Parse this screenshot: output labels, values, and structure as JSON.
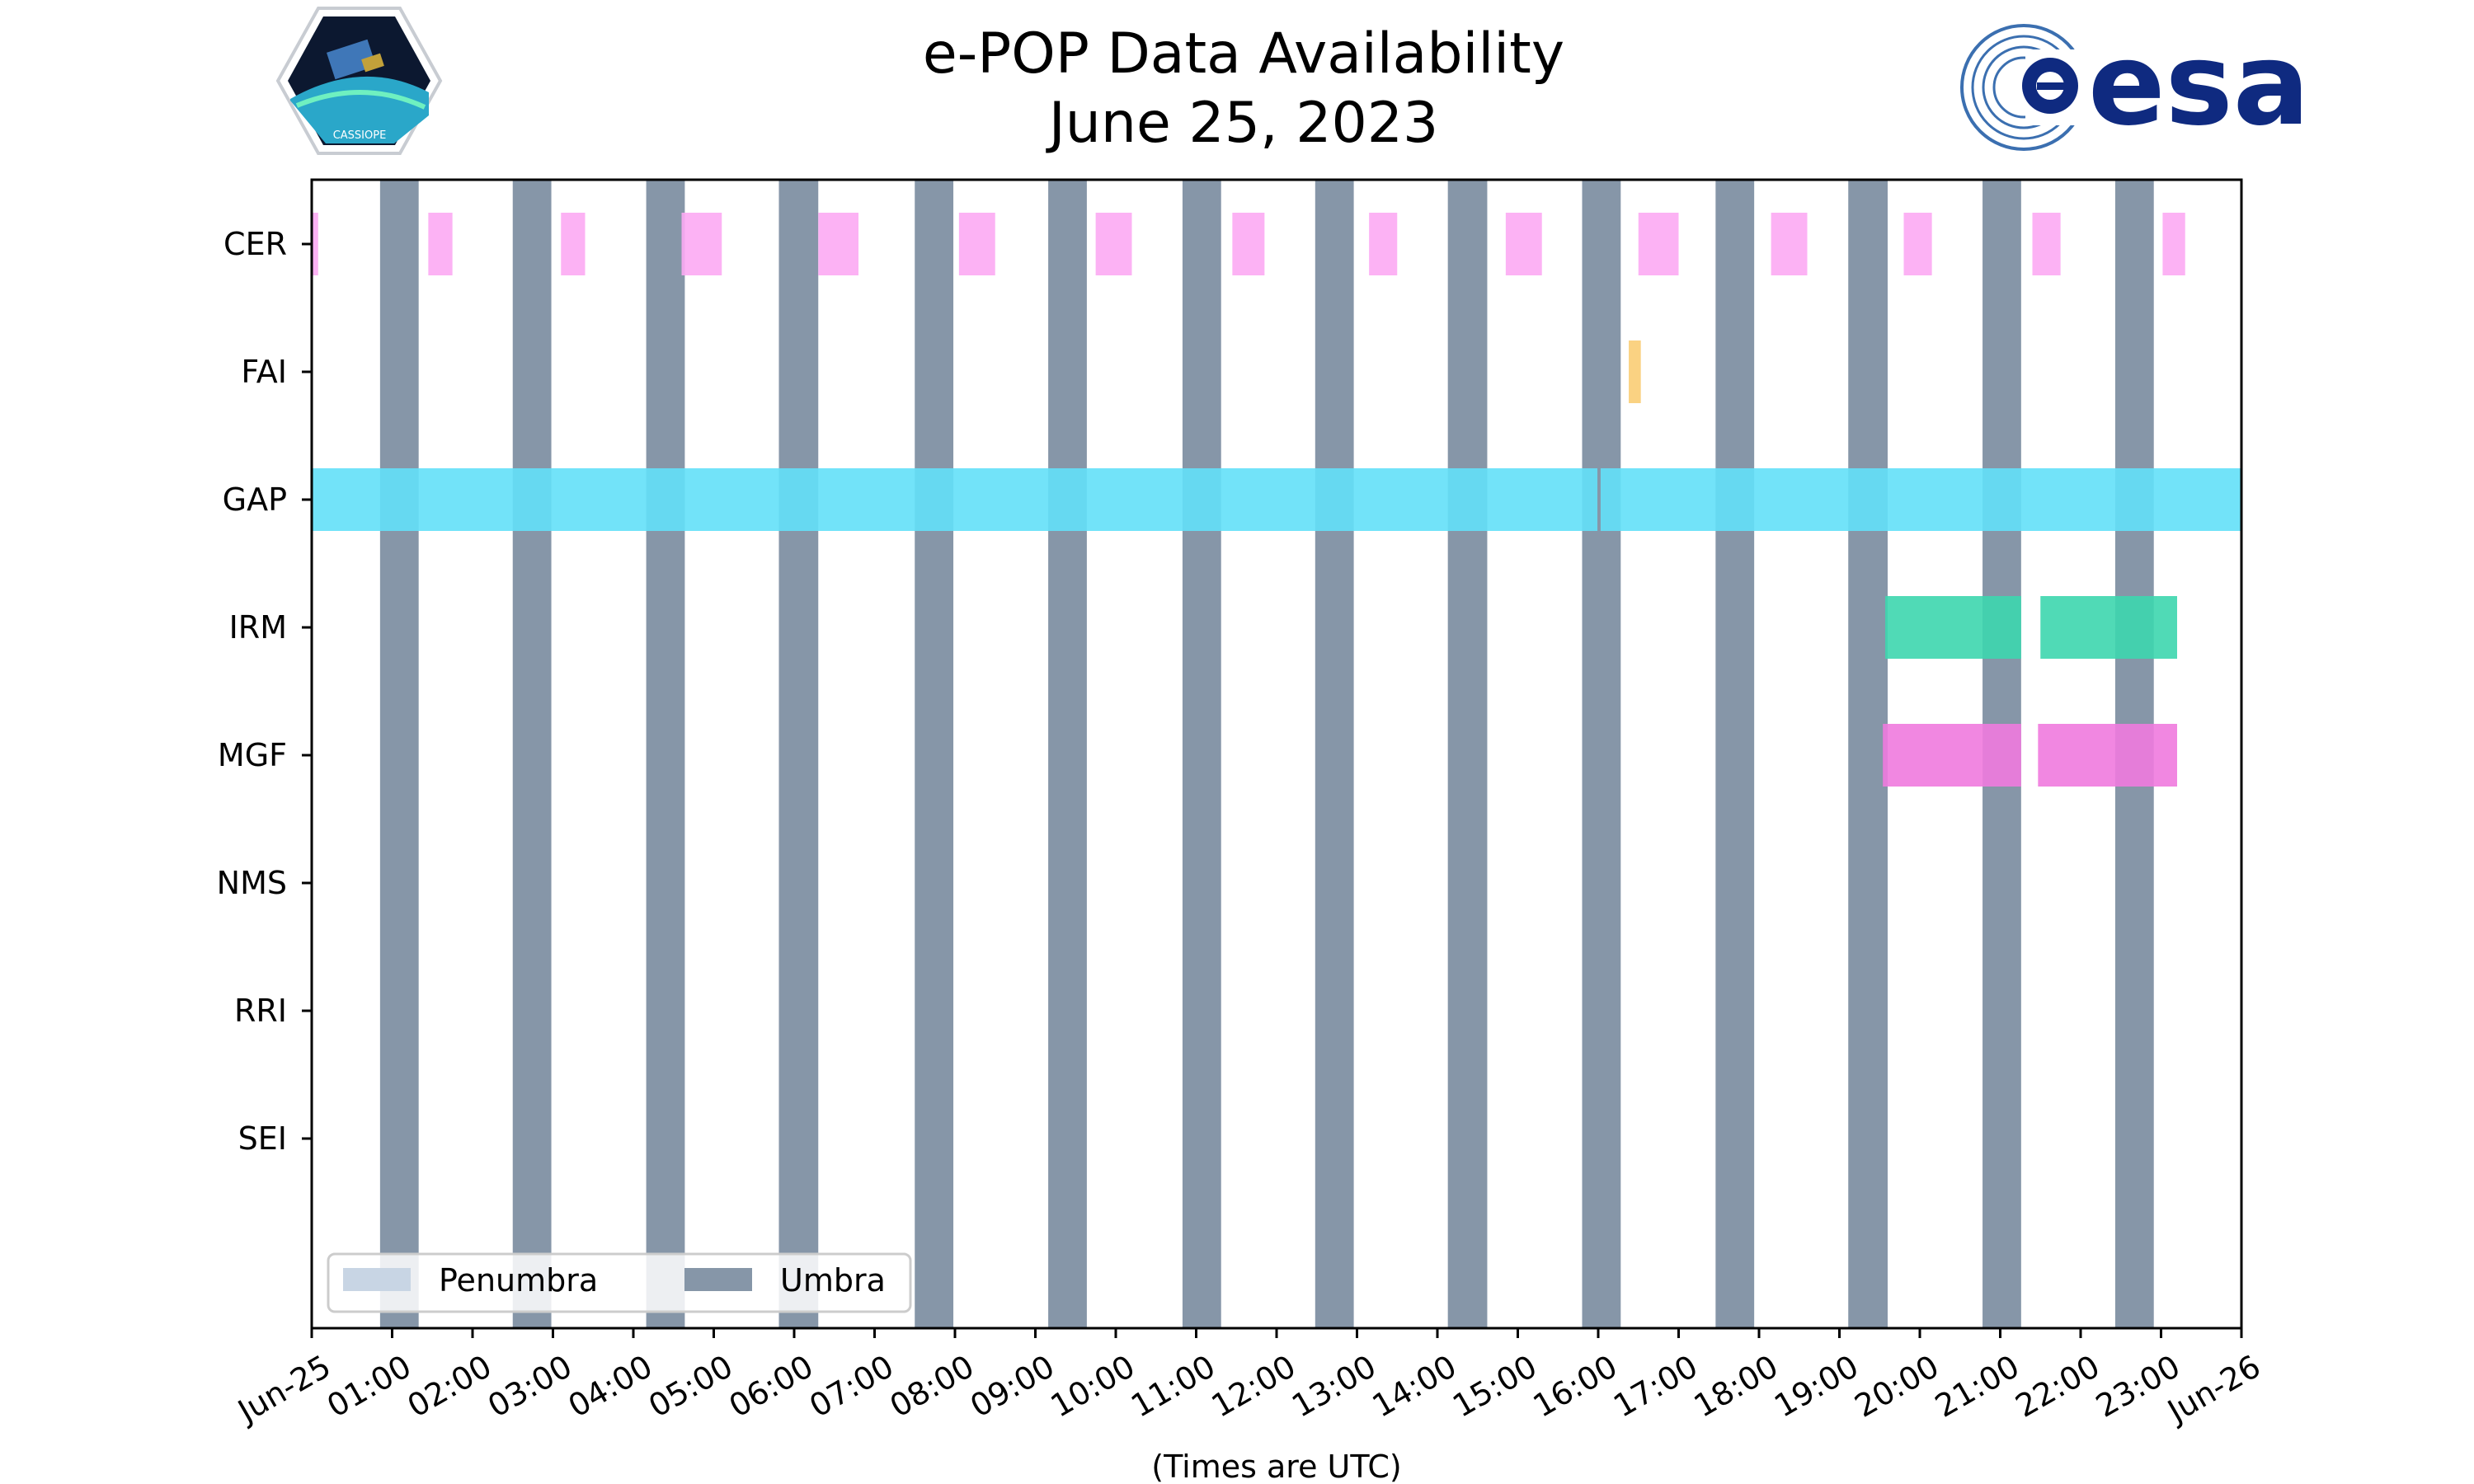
{
  "chart_data": {
    "type": "timeline",
    "title": "e-POP Data Availability",
    "subtitle": "June 25, 2023",
    "xlabel": "(Times are UTC)",
    "ylabel": "",
    "xlim_hours": [
      0,
      24
    ],
    "x_tick_labels": [
      "Jun-25",
      "01:00",
      "02:00",
      "03:00",
      "04:00",
      "05:00",
      "06:00",
      "07:00",
      "08:00",
      "09:00",
      "10:00",
      "11:00",
      "12:00",
      "13:00",
      "14:00",
      "15:00",
      "16:00",
      "17:00",
      "18:00",
      "19:00",
      "20:00",
      "21:00",
      "22:00",
      "23:00",
      "Jun-26"
    ],
    "instruments": [
      "CER",
      "FAI",
      "GAP",
      "IRM",
      "MGF",
      "NMS",
      "RRI",
      "SEI"
    ],
    "umbra_intervals_hours": [
      [
        0.85,
        1.33
      ],
      [
        2.5,
        2.98
      ],
      [
        4.16,
        4.64
      ],
      [
        5.81,
        6.3
      ],
      [
        7.5,
        7.98
      ],
      [
        9.16,
        9.64
      ],
      [
        10.83,
        11.31
      ],
      [
        12.48,
        12.96
      ],
      [
        14.13,
        14.62
      ],
      [
        15.8,
        16.28
      ],
      [
        17.46,
        17.94
      ],
      [
        19.11,
        19.6
      ],
      [
        20.78,
        21.26
      ],
      [
        22.43,
        22.91
      ]
    ],
    "series": [
      {
        "name": "CER",
        "color": "#fcaaf3",
        "intervals_hours": [
          [
            0.0,
            0.08
          ],
          [
            1.45,
            1.75
          ],
          [
            3.1,
            3.4
          ],
          [
            4.6,
            5.1
          ],
          [
            6.3,
            6.8
          ],
          [
            8.05,
            8.5
          ],
          [
            9.75,
            10.2
          ],
          [
            11.45,
            11.85
          ],
          [
            13.15,
            13.5
          ],
          [
            14.85,
            15.3
          ],
          [
            16.5,
            17.0
          ],
          [
            18.15,
            18.6
          ],
          [
            19.8,
            20.15
          ],
          [
            21.4,
            21.75
          ],
          [
            23.02,
            23.3
          ]
        ]
      },
      {
        "name": "FAI",
        "color": "#f9cd74",
        "intervals_hours": [
          [
            16.38,
            16.53
          ]
        ]
      },
      {
        "name": "GAP",
        "color": "#63e0f8",
        "intervals_hours": [
          [
            0.0,
            15.99
          ],
          [
            16.03,
            24.0
          ]
        ]
      },
      {
        "name": "IRM",
        "color": "#3dd6ae",
        "intervals_hours": [
          [
            19.57,
            21.26
          ],
          [
            21.5,
            23.2
          ]
        ]
      },
      {
        "name": "MGF",
        "color": "#f07ade",
        "intervals_hours": [
          [
            19.54,
            21.26
          ],
          [
            21.47,
            23.2
          ]
        ]
      },
      {
        "name": "NMS",
        "color": "#cccccc",
        "intervals_hours": []
      },
      {
        "name": "RRI",
        "color": "#cccccc",
        "intervals_hours": []
      },
      {
        "name": "SEI",
        "color": "#cccccc",
        "intervals_hours": []
      }
    ],
    "legend": {
      "placement": "bottom-left",
      "entries": [
        {
          "label": "Penumbra",
          "color": "#c8d5e4"
        },
        {
          "label": "Umbra",
          "color": "#8696a8"
        }
      ]
    },
    "grid": false
  },
  "logos": {
    "left": "cassiope-mission-badge",
    "right": "esa-logo",
    "right_text": "esa",
    "left_text": "CASSIOPE"
  }
}
